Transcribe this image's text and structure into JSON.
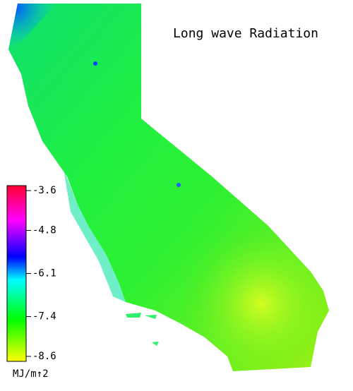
{
  "title": "Long wave Radiation",
  "colorbar": {
    "label": "MJ/m↑2",
    "lim": [
      -3.45,
      -8.75
    ],
    "ticks": [
      -3.6,
      -4.8,
      -6.1,
      -7.4,
      -8.6
    ],
    "stops": [
      {
        "value": -3.45,
        "color": "#ff0030"
      },
      {
        "value": -4.5,
        "color": "#ff00ff"
      },
      {
        "value": -5.6,
        "color": "#0000ff"
      },
      {
        "value": -6.3,
        "color": "#00ffff"
      },
      {
        "value": -7.5,
        "color": "#00ff00"
      },
      {
        "value": -8.75,
        "color": "#ffff00"
      }
    ]
  }
}
